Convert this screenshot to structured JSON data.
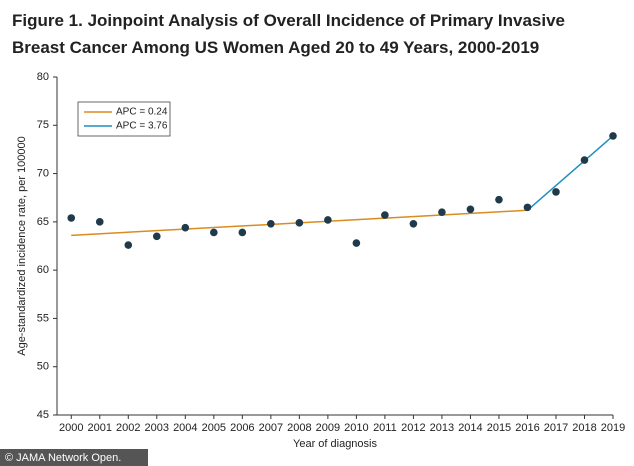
{
  "chart_data": {
    "type": "scatter",
    "title": [
      "Figure 1.  Joinpoint Analysis of Overall Incidence of Primary Invasive",
      "Breast Cancer Among US Women Aged 20 to 49 Years, 2000-2019"
    ],
    "x_label": "Year of diagnosis",
    "y_label": "Age-standardized incidence rate, per 100000",
    "x": [
      2000,
      2001,
      2002,
      2003,
      2004,
      2005,
      2006,
      2007,
      2008,
      2009,
      2010,
      2011,
      2012,
      2013,
      2014,
      2015,
      2016,
      2017,
      2018,
      2019
    ],
    "points": {
      "color": "#1f3a4a",
      "values": [
        65.4,
        65.0,
        62.6,
        63.5,
        64.4,
        63.9,
        63.9,
        64.8,
        64.9,
        65.2,
        62.8,
        65.7,
        64.8,
        66.0,
        66.3,
        67.3,
        66.5,
        68.1,
        71.4,
        73.9
      ]
    },
    "fits": [
      {
        "name": "APC = 0.24",
        "color": "#d98c1f",
        "x": [
          2000,
          2016
        ],
        "values": [
          63.6,
          66.2
        ]
      },
      {
        "name": "APC = 3.76",
        "color": "#1f8fbf",
        "x": [
          2016,
          2019
        ],
        "values": [
          66.2,
          73.9
        ]
      }
    ],
    "xlim": [
      1999.5,
      2019
    ],
    "xticks": [
      2000,
      2001,
      2002,
      2003,
      2004,
      2005,
      2006,
      2007,
      2008,
      2009,
      2010,
      2011,
      2012,
      2013,
      2014,
      2015,
      2016,
      2017,
      2018,
      2019
    ],
    "ylim": [
      45,
      80
    ],
    "yticks": [
      45,
      50,
      55,
      60,
      65,
      70,
      75,
      80
    ],
    "grid": false,
    "legend": "top-left"
  },
  "footer": "© JAMA Network Open."
}
